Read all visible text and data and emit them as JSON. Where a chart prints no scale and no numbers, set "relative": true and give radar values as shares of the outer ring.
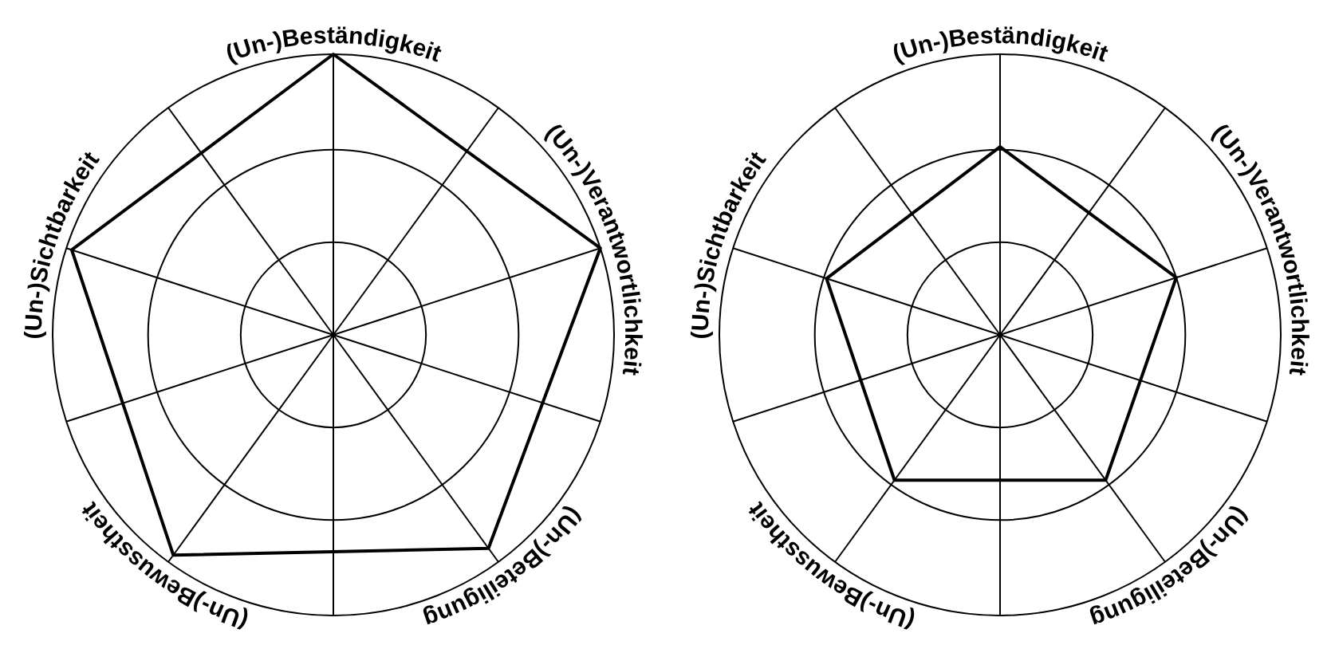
{
  "chart_data": [
    {
      "type": "radar",
      "categories": [
        "(Un-)Beständigkeit",
        "(Un-)Verantwortlichkeit",
        "(Un-)Beteiligung",
        "(Un-)Bewusstheit",
        "(Un-)Sichtbarkeit"
      ],
      "relative": true,
      "grid": true,
      "series": [
        {
          "color": "#000000",
          "values": [
            1,
            1,
            0.94,
            0.97,
            0.98
          ]
        }
      ]
    },
    {
      "type": "radar",
      "categories": [
        "(Un-)Beständigkeit",
        "(Un-)Verantwortlichkeit",
        "(Un-)Beteiligung",
        "(Un-)Bewusstheit",
        "(Un-)Sichtbarkeit"
      ],
      "relative": true,
      "grid": true,
      "series": [
        {
          "color": "#000000",
          "values": [
            0.67,
            0.66,
            0.64,
            0.64,
            0.65
          ]
        }
      ]
    }
  ]
}
